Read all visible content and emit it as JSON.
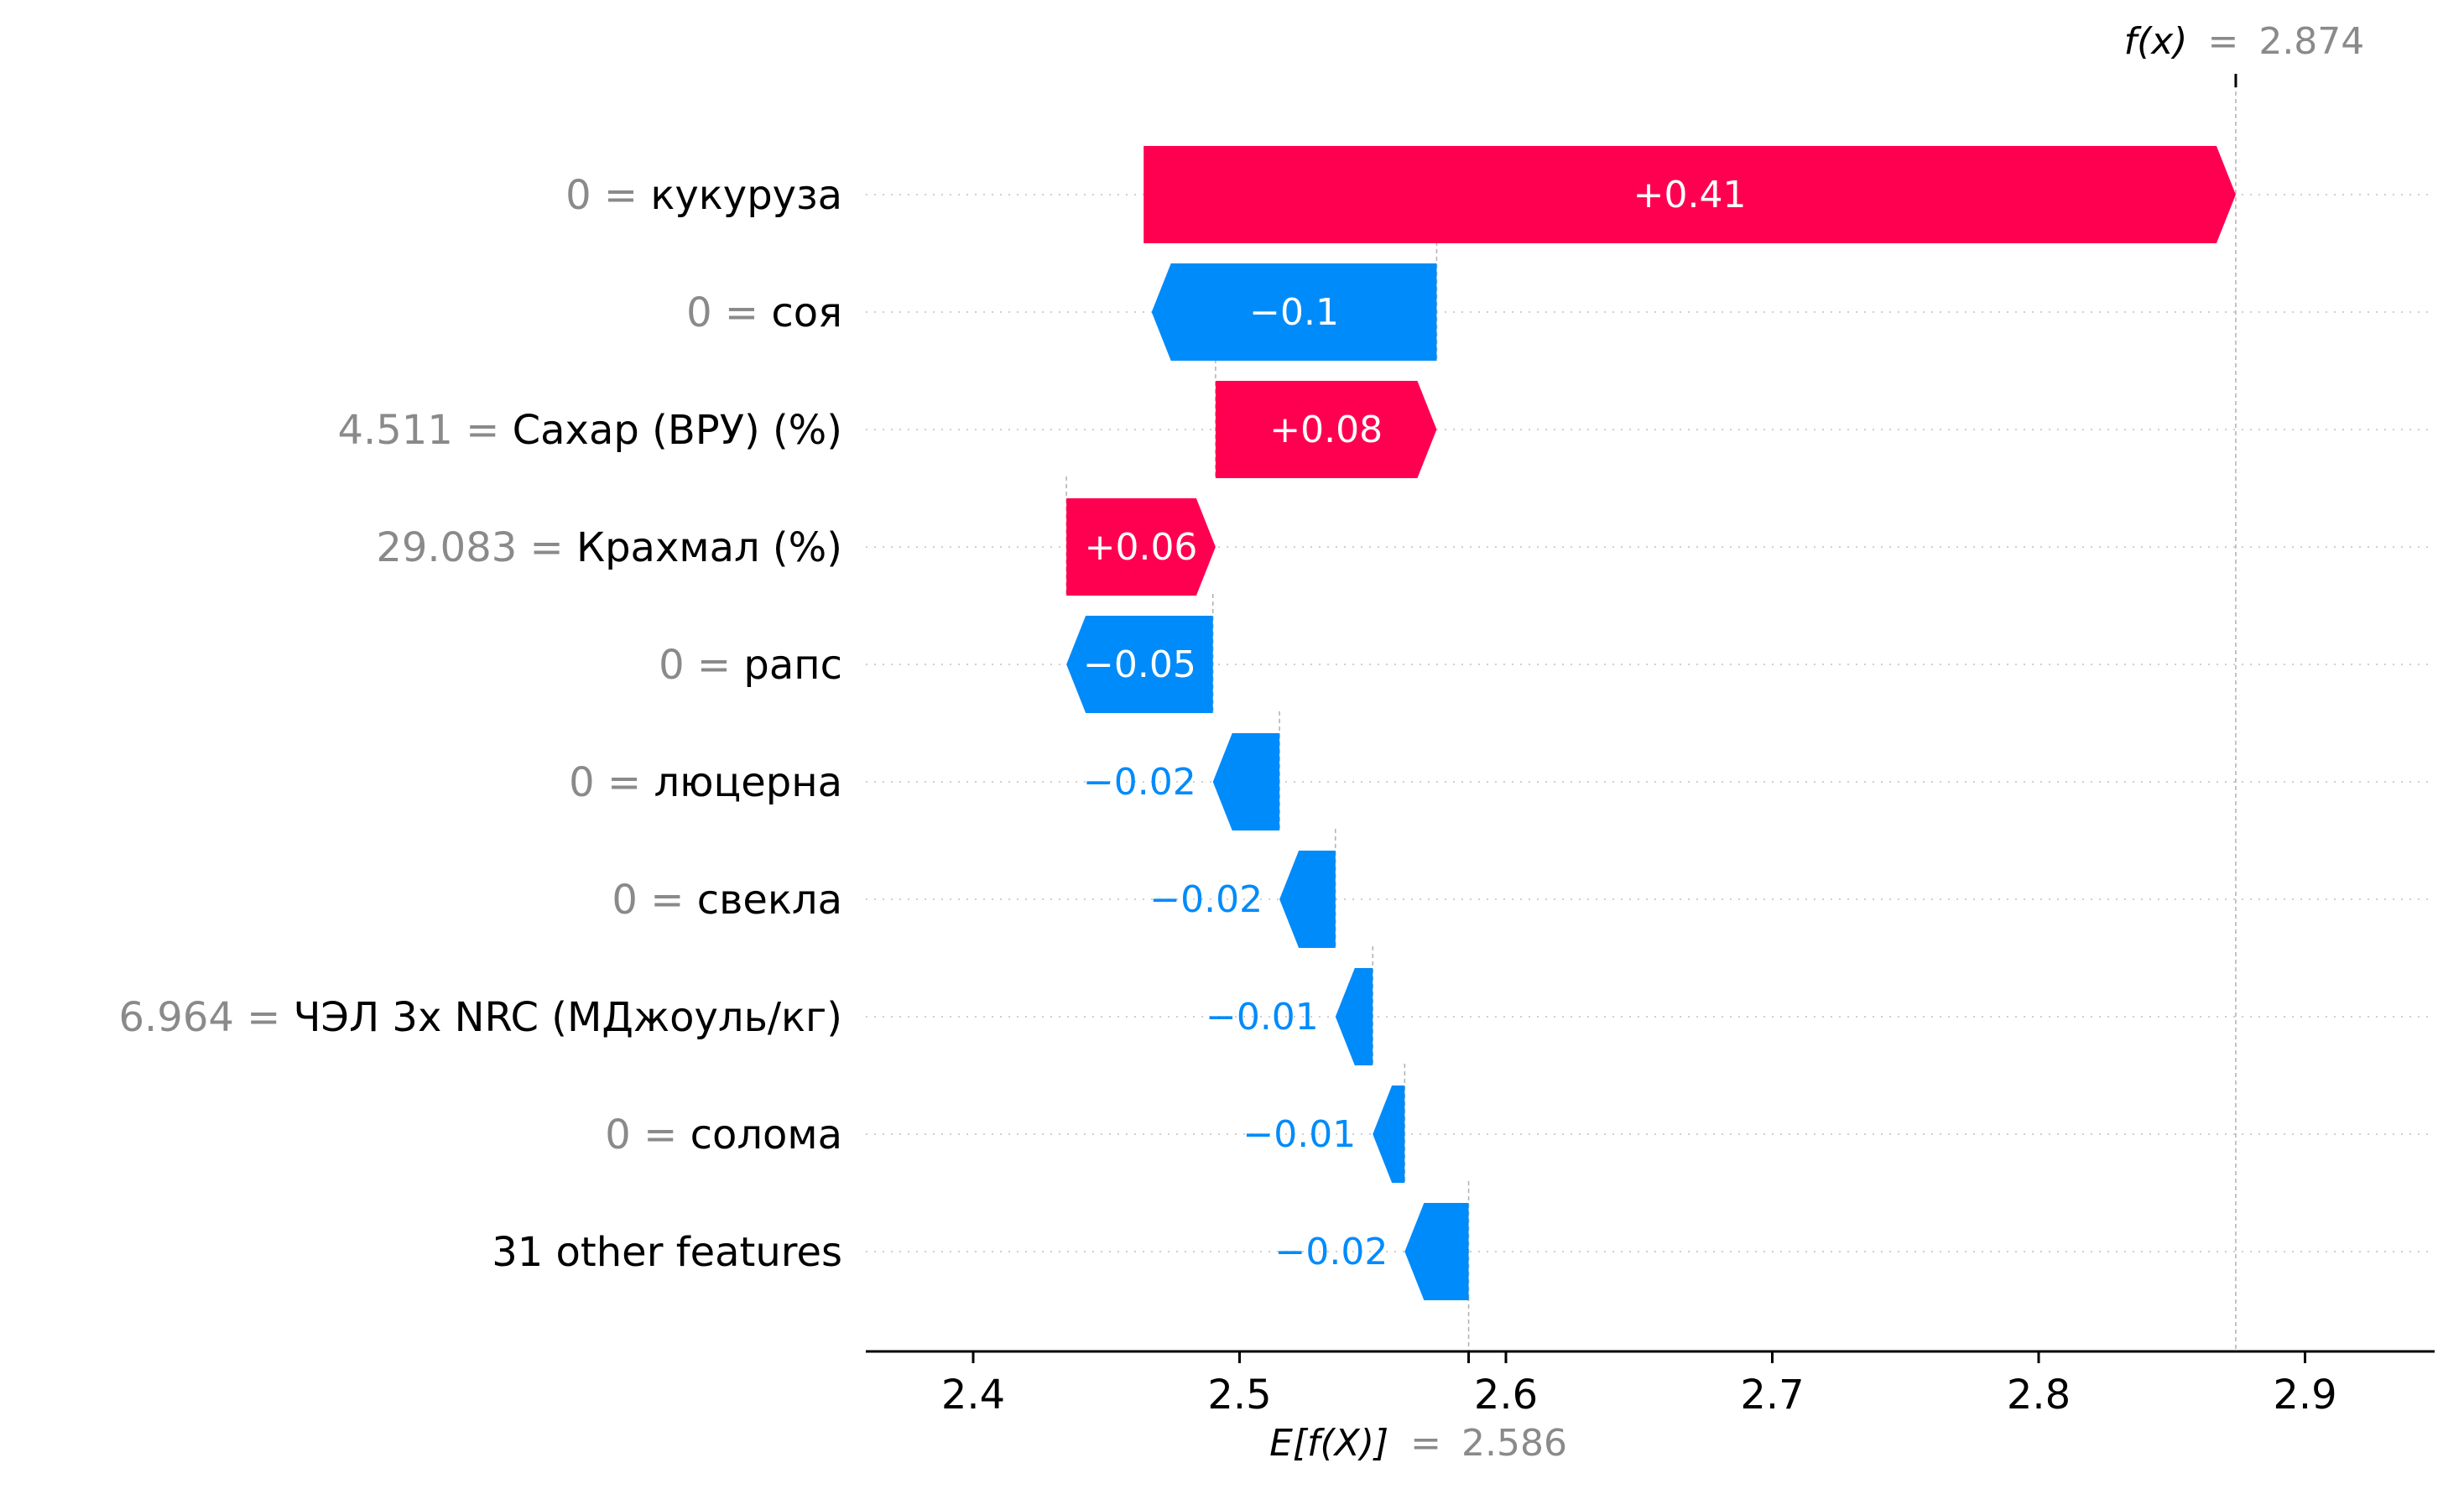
{
  "chart_data": {
    "type": "waterfall",
    "base_value": 2.586,
    "final_value": 2.874,
    "fx_label": {
      "name": "f(x)",
      "eq": "=",
      "value": "2.874"
    },
    "ex_label": {
      "name": "E[f(X)]",
      "eq": "=",
      "value": "2.586"
    },
    "xlim": [
      2.36,
      2.95
    ],
    "xticks": [
      2.4,
      2.5,
      2.6,
      2.7,
      2.8,
      2.9
    ],
    "xtick_labels": [
      "2.4",
      "2.5",
      "2.6",
      "2.7",
      "2.8",
      "2.9"
    ],
    "colors": {
      "positive": "#ff0051",
      "negative": "#008bfb",
      "value_text": "#8a8a8a",
      "axis": "#000000"
    },
    "features": [
      {
        "value": "0",
        "name": "кукуруза",
        "shap": 0.41,
        "label": "+0.41",
        "start": 2.464,
        "end": 2.874
      },
      {
        "value": "0",
        "name": "соя",
        "shap": -0.1,
        "label": "−0.1",
        "start": 2.574,
        "end": 2.467
      },
      {
        "value": "4.511",
        "name": "Сахар (ВРУ) (%)",
        "shap": 0.08,
        "label": "+0.08",
        "start": 2.491,
        "end": 2.574
      },
      {
        "value": "29.083",
        "name": "Крахмал (%)",
        "shap": 0.06,
        "label": "+0.06",
        "start": 2.435,
        "end": 2.491
      },
      {
        "value": "0",
        "name": "рапс",
        "shap": -0.05,
        "label": "−0.05",
        "start": 2.49,
        "end": 2.435
      },
      {
        "value": "0",
        "name": "люцерна",
        "shap": -0.02,
        "label": "−0.02",
        "start": 2.515,
        "end": 2.49
      },
      {
        "value": "0",
        "name": "свекла",
        "shap": -0.02,
        "label": "−0.02",
        "start": 2.536,
        "end": 2.515
      },
      {
        "value": "6.964",
        "name": "ЧЭЛ 3х NRC (МДжоуль/кг)",
        "shap": -0.01,
        "label": "−0.01",
        "start": 2.55,
        "end": 2.536
      },
      {
        "value": "0",
        "name": "солома",
        "shap": -0.01,
        "label": "−0.01",
        "start": 2.562,
        "end": 2.55
      },
      {
        "value": "",
        "name": "31 other features",
        "shap": -0.02,
        "label": "−0.02",
        "start": 2.586,
        "end": 2.562
      }
    ]
  }
}
